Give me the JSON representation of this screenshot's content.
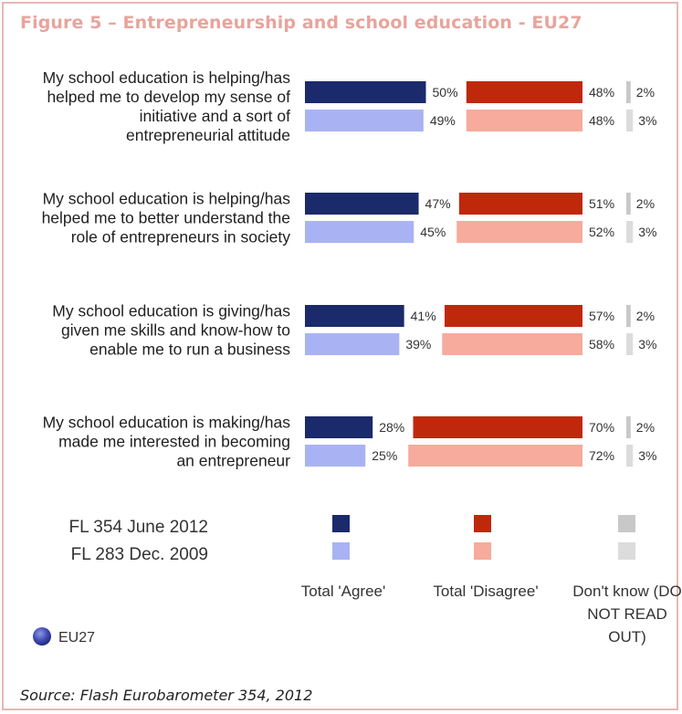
{
  "title": "Figure 5 – Entrepreneurship and school education - EU27",
  "source": "Source: Flash Eurobarometer 354, 2012",
  "chart_data": {
    "type": "bar",
    "orientation": "horizontal",
    "categories": [
      [
        "My school education is helping/has",
        "helped me to develop my sense of",
        "initiative and a sort of",
        "entrepreneurial attitude"
      ],
      [
        "My school education is helping/has",
        "helped me to better understand the",
        "role of entrepreneurs in society"
      ],
      [
        "My school education is giving/has",
        "given me skills and know-how to",
        "enable me to run a business"
      ],
      [
        "My school education is making/has",
        "made me interested in becoming",
        "an entrepreneur"
      ]
    ],
    "series": [
      {
        "name": "Total 'Agree' — FL 354 June 2012",
        "values": [
          50,
          47,
          41,
          28
        ],
        "labels": [
          "50%",
          "47%",
          "41%",
          "28%"
        ],
        "color": "#1b2a6b"
      },
      {
        "name": "Total 'Agree' — FL 283 Dec. 2009",
        "values": [
          49,
          45,
          39,
          25
        ],
        "labels": [
          "49%",
          "45%",
          "39%",
          "25%"
        ],
        "color": "#a9b3f4"
      },
      {
        "name": "Total 'Disagree' — FL 354 June 2012",
        "values": [
          48,
          51,
          57,
          70
        ],
        "labels": [
          "48%",
          "51%",
          "57%",
          "70%"
        ],
        "color": "#c0280c"
      },
      {
        "name": "Total 'Disagree' — FL 283 Dec. 2009",
        "values": [
          48,
          52,
          58,
          72
        ],
        "labels": [
          "48%",
          "52%",
          "58%",
          "72%"
        ],
        "color": "#f6ab9c"
      },
      {
        "name": "Don't know — FL 354 June 2012",
        "values": [
          2,
          2,
          2,
          2
        ],
        "labels": [
          "2%",
          "2%",
          "2%",
          "2%"
        ],
        "color": "#c8c8c8"
      },
      {
        "name": "Don't know — FL 283 Dec. 2009",
        "values": [
          3,
          3,
          3,
          3
        ],
        "labels": [
          "3%",
          "3%",
          "3%",
          "3%"
        ],
        "color": "#dcdcdc"
      }
    ],
    "legend": {
      "rows": [
        "FL 354 June 2012",
        "FL 283 Dec. 2009"
      ],
      "columns": [
        [
          "Total 'Agree'"
        ],
        [
          "Total 'Disagree'"
        ],
        [
          "Don't know (DO",
          "NOT READ",
          "OUT)"
        ]
      ],
      "placement": "bottom"
    },
    "region_label": "EU27",
    "xlim": [
      0,
      100
    ]
  }
}
